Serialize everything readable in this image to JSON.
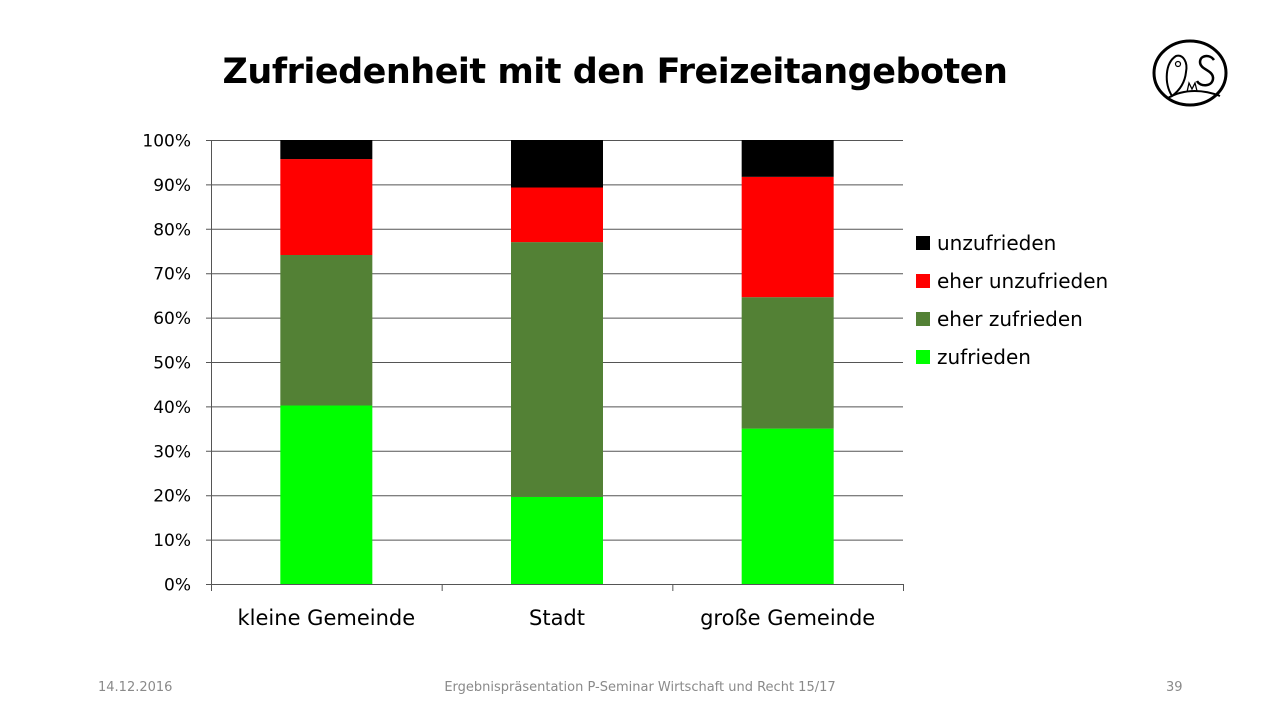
{
  "slide": {
    "title": "Zufriedenheit mit den Freizeitangeboten",
    "footer_date": "14.12.2016",
    "footer_text": "Ergebnispräsentation P-Seminar Wirtschaft und Recht 15/17",
    "page_number": "39",
    "logo_text": "MS"
  },
  "chart_data": {
    "type": "bar",
    "stacked": "percent",
    "title": "Zufriedenheit mit den Freizeitangeboten",
    "categories": [
      "kleine Gemeinde",
      "Stadt",
      "große Gemeinde"
    ],
    "series": [
      {
        "name": "zufrieden",
        "color": "#00ff00",
        "values": [
          40.2,
          19.6,
          35.0
        ]
      },
      {
        "name": "eher zufrieden",
        "color": "#538135",
        "values": [
          33.9,
          57.4,
          29.6
        ]
      },
      {
        "name": "eher unzufrieden",
        "color": "#ff0000",
        "values": [
          21.6,
          12.3,
          27.1
        ]
      },
      {
        "name": "unzufrieden",
        "color": "#000000",
        "values": [
          4.3,
          10.7,
          8.3
        ]
      }
    ],
    "yticks": [
      "0%",
      "10%",
      "20%",
      "30%",
      "40%",
      "50%",
      "60%",
      "70%",
      "80%",
      "90%",
      "100%"
    ],
    "ylim": [
      0,
      100
    ],
    "grid": true,
    "legend": "right",
    "xlabel": "",
    "ylabel": ""
  }
}
